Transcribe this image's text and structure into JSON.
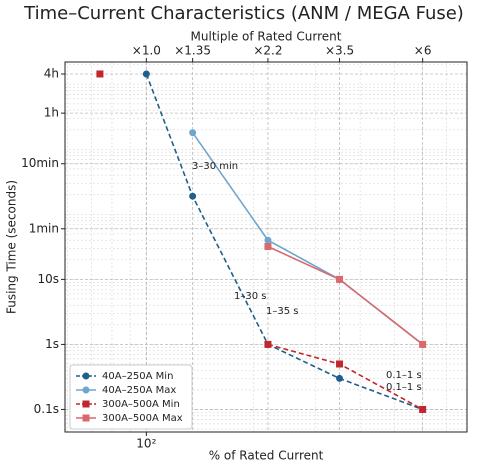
{
  "chart_data": {
    "type": "line",
    "title": "Time–Current Characteristics (ANM / MEGA Fuse)",
    "x_label": "% of Rated Current",
    "y_label": "Fusing Time (seconds)",
    "top_label": "Multiple of Rated Current",
    "x_log": true,
    "y_log": true,
    "grid": true,
    "legend": "lower left",
    "xlim": [
      59,
      800
    ],
    "ylim": [
      0.045,
      22000
    ],
    "xticks": [
      {
        "value": 100,
        "label": "10²"
      }
    ],
    "top_ticks": [
      {
        "value": 100,
        "label": "×1.0"
      },
      {
        "value": 135,
        "label": "×1.35"
      },
      {
        "value": 220,
        "label": "×2.2"
      },
      {
        "value": 350,
        "label": "×3.5"
      },
      {
        "value": 600,
        "label": "×6"
      }
    ],
    "yticks": [
      {
        "value": 0.1,
        "label": "0.1s"
      },
      {
        "value": 1,
        "label": "1s"
      },
      {
        "value": 10,
        "label": "10s"
      },
      {
        "value": 60,
        "label": "1min"
      },
      {
        "value": 600,
        "label": "10min"
      },
      {
        "value": 3600,
        "label": "1h"
      },
      {
        "value": 14400,
        "label": "4h"
      }
    ],
    "series": [
      {
        "name": "40A–250A Min",
        "color": "#1f5f8b",
        "dashed": true,
        "marker": "circle",
        "x": [
          100,
          135,
          220,
          350,
          600
        ],
        "values": [
          14400,
          190,
          1,
          0.3,
          0.1
        ]
      },
      {
        "name": "40A–250A Max",
        "color": "#6fa6cf",
        "dashed": false,
        "marker": "circle",
        "x": [
          135,
          220,
          350,
          600
        ],
        "values": [
          1800,
          40,
          10,
          1
        ]
      },
      {
        "name": "300A–500A Min",
        "color": "#c0282d",
        "dashed": true,
        "marker": "square",
        "x": [
          74,
          null,
          220,
          350,
          600
        ],
        "values": [
          14400,
          null,
          1,
          0.5,
          0.1
        ]
      },
      {
        "name": "300A–500A Max",
        "color": "#d9696c",
        "dashed": false,
        "marker": "square",
        "x": [
          220,
          350,
          600
        ],
        "values": [
          32,
          10,
          1
        ]
      }
    ],
    "annotations": [
      {
        "text": "3–30 min",
        "color": "#1f5f8b"
      },
      {
        "text": "1–30 s",
        "color": "#c0282d"
      },
      {
        "text": "1–35 s",
        "color": "#1f5f8b"
      },
      {
        "text": "0.1–1 s",
        "color": "#c0282d"
      },
      {
        "text": "0.1–1 s",
        "color": "#1f5f8b"
      }
    ]
  }
}
